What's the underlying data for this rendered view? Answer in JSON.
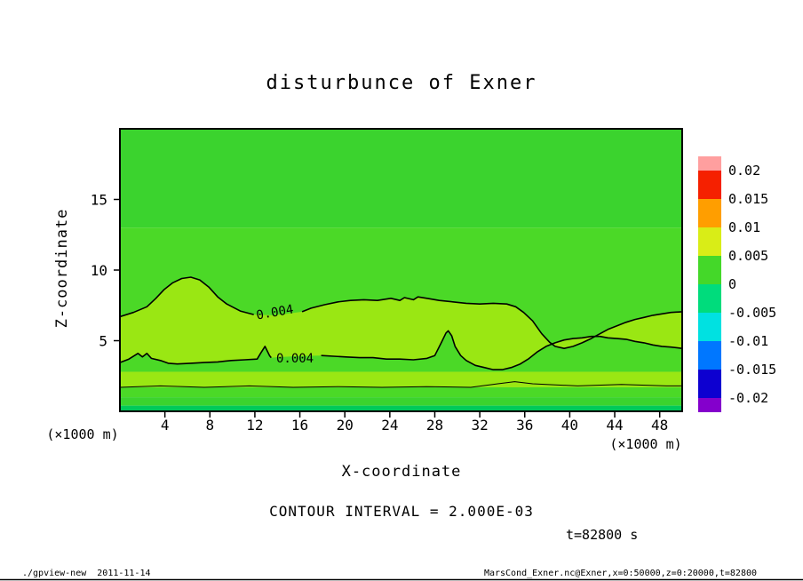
{
  "title": "disturbunce of Exner",
  "axes": {
    "x_label": "X-coordinate",
    "y_label": "Z-coordinate",
    "x_unit_left": "(×1000 m)",
    "x_unit_right": "(×1000 m)",
    "x_ticks": [
      "4",
      "8",
      "12",
      "16",
      "20",
      "24",
      "28",
      "32",
      "36",
      "40",
      "44",
      "48"
    ],
    "x_tick_values": [
      4,
      8,
      12,
      16,
      20,
      24,
      28,
      32,
      36,
      40,
      44,
      48
    ],
    "z_ticks": [
      "5",
      "10",
      "15"
    ],
    "z_tick_values": [
      5,
      10,
      15
    ],
    "x_range": [
      0,
      50
    ],
    "z_range": [
      0,
      20
    ]
  },
  "colorbar": {
    "labels": [
      "0.02",
      "0.015",
      "0.01",
      "0.005",
      "0",
      "-0.005",
      "-0.01",
      "-0.015",
      "-0.02"
    ],
    "colors": [
      "#ff9f9f",
      "#f52000",
      "#ff9e00",
      "#d9ed17",
      "#44d829",
      "#00dc7c",
      "#00e1e1",
      "#0077ff",
      "#0d00d0",
      "#8400cc"
    ]
  },
  "annotations": {
    "contour_interval": "CONTOUR INTERVAL = 2.000E-03",
    "time": "t=82800 s"
  },
  "footer": {
    "left": "./gpview-new  2011-11-14",
    "right": "MarsCond_Exner.nc@Exner,x=0:50000,z=0:20000,t=82800"
  },
  "chart_data": {
    "type": "filled_contour",
    "title": "disturbunce of Exner",
    "xlabel": "X-coordinate (×1000 m)",
    "ylabel": "Z-coordinate (×1000 m)",
    "xlim": [
      0,
      50
    ],
    "ylim": [
      0,
      20
    ],
    "contour_interval": 0.002,
    "labeled_level": 0.004,
    "contour_label": "0.004",
    "band_between_contours_color": "#9ae713",
    "fill_bands": [
      {
        "z_from": 13,
        "z_to": 20,
        "color": "#3bd32e"
      },
      {
        "z_from": 2.8,
        "z_to": 13,
        "color": "#4bd927"
      },
      {
        "z_from": 1.7,
        "z_to": 2.8,
        "color": "#9ae713"
      },
      {
        "z_from": 1.0,
        "z_to": 1.7,
        "color": "#4bd927"
      },
      {
        "z_from": 0.4,
        "z_to": 1.0,
        "color": "#3bd32e"
      },
      {
        "z_from": 0,
        "z_to": 0.4,
        "color": "#00c95a"
      }
    ],
    "contours": {
      "upper_0004_a": [
        [
          0,
          6.7
        ],
        [
          1.2,
          7.0
        ],
        [
          2.4,
          7.4
        ],
        [
          3.2,
          8.0
        ],
        [
          3.9,
          8.6
        ],
        [
          4.7,
          9.1
        ],
        [
          5.5,
          9.4
        ],
        [
          6.3,
          9.5
        ],
        [
          7.1,
          9.3
        ],
        [
          7.9,
          8.8
        ],
        [
          8.7,
          8.1
        ],
        [
          9.5,
          7.6
        ],
        [
          10.7,
          7.1
        ],
        [
          11.9,
          6.85
        ]
      ],
      "upper_bridge": [
        [
          13.5,
          6.8
        ],
        [
          14.8,
          6.9
        ]
      ],
      "upper_0004_b": [
        [
          16.2,
          7.05
        ],
        [
          17,
          7.3
        ],
        [
          18.2,
          7.55
        ],
        [
          19.4,
          7.75
        ],
        [
          20.5,
          7.85
        ],
        [
          21.7,
          7.9
        ],
        [
          22.9,
          7.85
        ],
        [
          24.1,
          8.0
        ],
        [
          24.9,
          7.85
        ],
        [
          25.3,
          8.05
        ],
        [
          26.1,
          7.9
        ],
        [
          26.5,
          8.1
        ],
        [
          27.3,
          8.0
        ],
        [
          28.4,
          7.85
        ],
        [
          29.6,
          7.75
        ],
        [
          30.8,
          7.65
        ],
        [
          32,
          7.6
        ],
        [
          33.2,
          7.65
        ],
        [
          34.4,
          7.6
        ],
        [
          35.2,
          7.4
        ],
        [
          35.9,
          7.0
        ],
        [
          36.7,
          6.4
        ],
        [
          37.5,
          5.5
        ],
        [
          38.2,
          4.9
        ],
        [
          38.7,
          4.6
        ],
        [
          39.5,
          4.45
        ],
        [
          40.3,
          4.6
        ],
        [
          41.1,
          4.85
        ],
        [
          41.9,
          5.15
        ],
        [
          42.7,
          5.5
        ],
        [
          43.4,
          5.8
        ],
        [
          44.2,
          6.05
        ],
        [
          45,
          6.3
        ],
        [
          45.8,
          6.5
        ],
        [
          46.6,
          6.65
        ],
        [
          47.4,
          6.8
        ],
        [
          48.2,
          6.9
        ],
        [
          49,
          7.0
        ],
        [
          50,
          7.05
        ]
      ],
      "lower_0004_a": [
        [
          0,
          3.45
        ],
        [
          0.8,
          3.7
        ],
        [
          1.6,
          4.1
        ],
        [
          2.0,
          3.85
        ],
        [
          2.4,
          4.1
        ],
        [
          2.8,
          3.75
        ],
        [
          3.6,
          3.6
        ],
        [
          4.3,
          3.4
        ],
        [
          5.1,
          3.35
        ],
        [
          6.3,
          3.4
        ],
        [
          7.5,
          3.45
        ],
        [
          8.7,
          3.5
        ],
        [
          9.9,
          3.6
        ],
        [
          11.1,
          3.65
        ],
        [
          12.2,
          3.7
        ],
        [
          12.5,
          4.1
        ],
        [
          12.9,
          4.6
        ],
        [
          13.3,
          3.95
        ],
        [
          13.45,
          3.8
        ]
      ],
      "lower_bridge": [
        [
          15.5,
          3.9
        ],
        [
          16.8,
          3.93
        ]
      ],
      "lower_0004_b": [
        [
          17.9,
          3.95
        ],
        [
          19,
          3.9
        ],
        [
          20.1,
          3.85
        ],
        [
          21.3,
          3.8
        ],
        [
          22.5,
          3.8
        ],
        [
          23.7,
          3.7
        ],
        [
          24.9,
          3.7
        ],
        [
          26.1,
          3.65
        ],
        [
          27.3,
          3.75
        ],
        [
          28,
          3.95
        ],
        [
          28.6,
          4.9
        ],
        [
          29,
          5.55
        ],
        [
          29.2,
          5.7
        ],
        [
          29.5,
          5.35
        ],
        [
          29.8,
          4.6
        ],
        [
          30.3,
          3.95
        ],
        [
          30.8,
          3.6
        ],
        [
          31.6,
          3.25
        ],
        [
          32.4,
          3.1
        ],
        [
          33.2,
          2.95
        ],
        [
          34,
          2.95
        ],
        [
          34.8,
          3.1
        ],
        [
          35.6,
          3.35
        ],
        [
          36.3,
          3.7
        ],
        [
          37.1,
          4.2
        ],
        [
          37.9,
          4.6
        ],
        [
          38.7,
          4.85
        ],
        [
          39.5,
          5.05
        ],
        [
          40.3,
          5.15
        ],
        [
          41.1,
          5.2
        ],
        [
          41.9,
          5.3
        ],
        [
          42.7,
          5.3
        ],
        [
          43.4,
          5.2
        ],
        [
          44.2,
          5.15
        ],
        [
          45,
          5.1
        ],
        [
          45.8,
          4.95
        ],
        [
          46.6,
          4.85
        ],
        [
          47.4,
          4.7
        ],
        [
          48.2,
          4.6
        ],
        [
          49,
          4.55
        ],
        [
          50,
          4.45
        ]
      ],
      "near_surface_line": [
        [
          0,
          1.7
        ],
        [
          3.6,
          1.8
        ],
        [
          7.5,
          1.7
        ],
        [
          11.5,
          1.8
        ],
        [
          15.4,
          1.7
        ],
        [
          19.4,
          1.75
        ],
        [
          23.3,
          1.7
        ],
        [
          27.3,
          1.75
        ],
        [
          31.2,
          1.7
        ],
        [
          33.6,
          1.95
        ],
        [
          35.1,
          2.1
        ],
        [
          36.7,
          1.95
        ],
        [
          40.7,
          1.8
        ],
        [
          44.6,
          1.9
        ],
        [
          48.6,
          1.8
        ],
        [
          50,
          1.8
        ]
      ]
    },
    "contour_labels": [
      {
        "text": "0.004",
        "x": 12.2,
        "z": 6.5,
        "rotation": -10
      },
      {
        "text": "0.004",
        "x": 13.9,
        "z": 3.45,
        "rotation": 0
      }
    ],
    "colorbar_levels": [
      0.02,
      0.015,
      0.01,
      0.005,
      0,
      -0.005,
      -0.01,
      -0.015,
      -0.02
    ]
  }
}
